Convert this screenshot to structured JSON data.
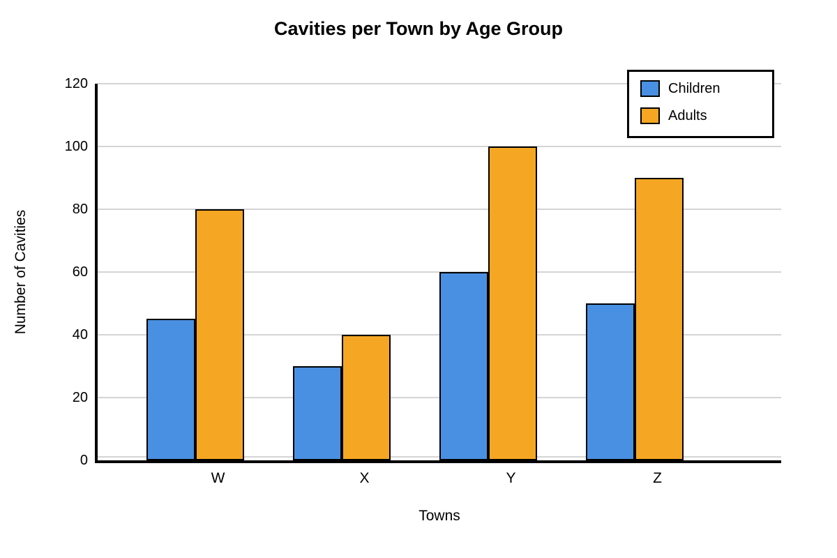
{
  "chart_data": {
    "type": "bar",
    "title": "Cavities per Town by Age Group",
    "categories": [
      "W",
      "X",
      "Y",
      "Z"
    ],
    "series": [
      {
        "name": "Children",
        "color": "#4a90e2",
        "values": [
          45,
          30,
          60,
          50
        ]
      },
      {
        "name": "Adults",
        "color": "#f5a623",
        "values": [
          80,
          40,
          100,
          90
        ]
      }
    ],
    "xlabel": "Towns",
    "ylabel": "Number of Cavities",
    "ylim": [
      0,
      120
    ],
    "yticks": [
      0,
      20,
      40,
      60,
      80,
      100,
      120
    ],
    "grid": true,
    "legend_position": "top-right",
    "colors": {
      "axis": "#000000",
      "gridline": "#d4d4d4",
      "background": "#ffffff"
    }
  }
}
